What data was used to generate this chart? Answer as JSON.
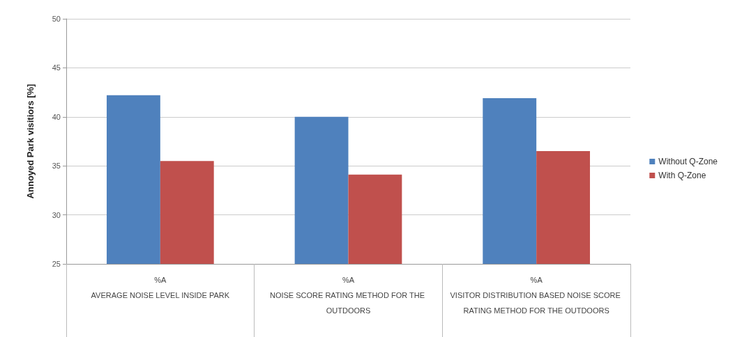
{
  "chart_data": {
    "type": "bar",
    "ylabel": "Annoyed Park visitiors [%]",
    "categories": [
      "%A\nAVERAGE NOISE LEVEL INSIDE PARK",
      "%A\nNOISE SCORE RATING METHOD FOR THE OUTDOORS",
      "%A\nVISITOR DISTRIBUTION BASED NOISE SCORE RATING METHOD FOR THE OUTDOORS"
    ],
    "series": [
      {
        "name": "Without Q-Zone",
        "color": "#4f81bd",
        "values": [
          42.2,
          40.0,
          41.9
        ]
      },
      {
        "name": "With Q-Zone",
        "color": "#c0504d",
        "values": [
          35.5,
          34.1,
          36.5
        ]
      }
    ],
    "ylim": [
      25,
      50
    ],
    "yticks": [
      25,
      30,
      35,
      40,
      45,
      50
    ],
    "grid": "y",
    "legend": "right"
  }
}
